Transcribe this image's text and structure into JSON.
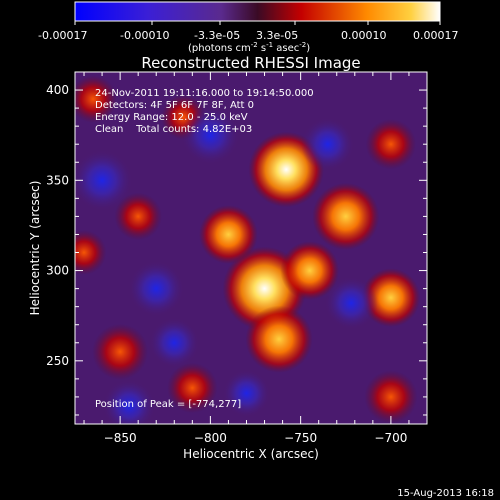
{
  "chart_data": {
    "type": "heatmap",
    "title": "Reconstructed RHESSI Image",
    "xlabel": "Heliocentric X (arcsec)",
    "ylabel": "Heliocentric Y (arcsec)",
    "xlim": [
      -875,
      -680
    ],
    "ylim": [
      215,
      410
    ],
    "xticks": [
      -850,
      -800,
      -750,
      -700
    ],
    "yticks": [
      250,
      300,
      350,
      400
    ],
    "colorbar": {
      "ticks": [
        "-0.00017",
        "-0.00010",
        "-3.3e-05",
        "3.3e-05",
        "0.00010",
        "0.00017"
      ],
      "unit_prefix": "(photons cm",
      "unit_exp1": "-2",
      "unit_mid": " s",
      "unit_exp2": "-1",
      "unit_mid2": " asec",
      "unit_exp3": "-2",
      "unit_suffix": ")"
    },
    "annotations": {
      "line1": "24-Nov-2011 19:11:16.000 to 19:14:50.000",
      "line2": "Detectors: 4F 5F 6F 7F 8F, Att 0",
      "line3": "Energy Range: 12.0 - 25.0 keV",
      "line4": "Clean    Total counts: 4.82E+03",
      "peak": "Position of Peak = [-774,277]"
    },
    "peak_position": [
      -774,
      277
    ],
    "footer_date": "15-Aug-2013 16:18",
    "sources": [
      {
        "x": -770,
        "y": 290,
        "value": 1.0
      },
      {
        "x": -762,
        "y": 262,
        "value": 0.7
      },
      {
        "x": -758,
        "y": 356,
        "value": 0.85
      },
      {
        "x": -725,
        "y": 330,
        "value": 0.7
      },
      {
        "x": -790,
        "y": 320,
        "value": 0.55
      },
      {
        "x": -745,
        "y": 300,
        "value": 0.55
      },
      {
        "x": -700,
        "y": 285,
        "value": 0.55
      },
      {
        "x": -850,
        "y": 255,
        "value": 0.5
      },
      {
        "x": -700,
        "y": 230,
        "value": 0.45
      },
      {
        "x": -700,
        "y": 370,
        "value": 0.4
      },
      {
        "x": -840,
        "y": 330,
        "value": 0.35
      },
      {
        "x": -810,
        "y": 235,
        "value": 0.4
      },
      {
        "x": -865,
        "y": 395,
        "value": 0.35
      },
      {
        "x": -815,
        "y": 385,
        "value": 0.3
      },
      {
        "x": -870,
        "y": 310,
        "value": 0.3
      },
      {
        "x": -860,
        "y": 350,
        "value": -0.6
      },
      {
        "x": -830,
        "y": 290,
        "value": -0.5
      },
      {
        "x": -800,
        "y": 375,
        "value": -0.55
      },
      {
        "x": -735,
        "y": 370,
        "value": -0.45
      },
      {
        "x": -820,
        "y": 260,
        "value": -0.4
      },
      {
        "x": -722,
        "y": 282,
        "value": -0.45
      },
      {
        "x": -780,
        "y": 232,
        "value": -0.35
      },
      {
        "x": -845,
        "y": 225,
        "value": -0.45
      }
    ]
  }
}
